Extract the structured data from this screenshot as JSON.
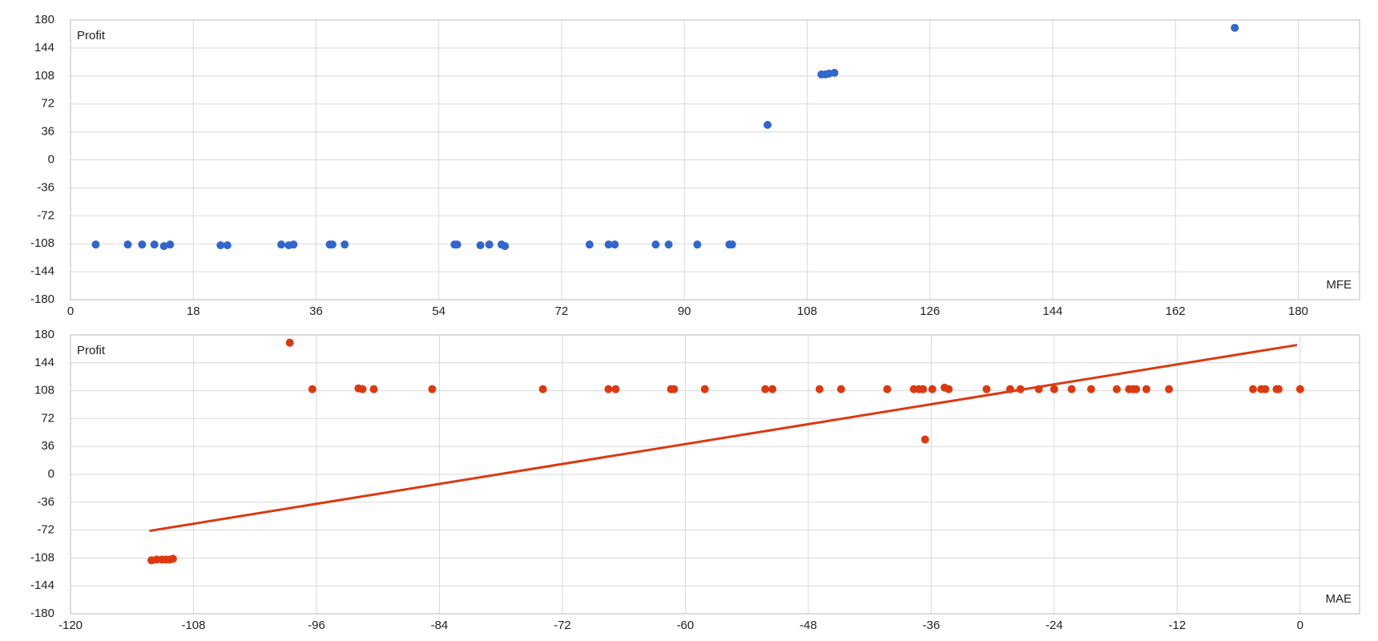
{
  "chart_data": [
    {
      "type": "scatter",
      "ylabel": "Profit",
      "xlabel": "MFE",
      "color": "#3366cc",
      "grid": true,
      "x": [
        3.7,
        8.4,
        10.5,
        12.3,
        13.7,
        14.6,
        22.0,
        23.0,
        30.9,
        32.0,
        32.7,
        38.0,
        38.4,
        40.2,
        56.3,
        56.7,
        60.1,
        61.4,
        63.2,
        63.7,
        76.1,
        78.9,
        79.8,
        85.8,
        87.7,
        91.9,
        96.6,
        97.0,
        102.2,
        110.1,
        110.7,
        111.2,
        112.0,
        170.7
      ],
      "values": [
        -109,
        -109,
        -109,
        -109,
        -111,
        -109,
        -110,
        -110,
        -109,
        -110,
        -109,
        -109,
        -109,
        -109,
        -109,
        -109,
        -110,
        -109,
        -109,
        -111,
        -109,
        -109,
        -109,
        -109,
        -109,
        -109,
        -109,
        -109,
        45,
        110,
        110,
        111,
        112,
        170
      ],
      "xlim": [
        0,
        189
      ],
      "xticks": [
        0,
        18,
        36,
        54,
        72,
        90,
        108,
        126,
        144,
        162,
        180
      ],
      "ylim": [
        -180,
        180
      ],
      "yticks": [
        -180,
        -144,
        -108,
        -72,
        -36,
        0,
        36,
        72,
        108,
        144,
        180
      ]
    },
    {
      "type": "scatter",
      "ylabel": "Profit",
      "xlabel": "MAE",
      "color": "#dc3912",
      "grid": true,
      "x": [
        -112.1,
        -111.6,
        -111.1,
        -110.7,
        -110.3,
        -110.0,
        -98.6,
        -96.4,
        -91.9,
        -91.5,
        -90.4,
        -84.7,
        -73.9,
        -67.5,
        -66.8,
        -61.4,
        -61.1,
        -58.1,
        -52.2,
        -51.5,
        -46.9,
        -44.8,
        -40.3,
        -37.7,
        -37.2,
        -36.8,
        -36.6,
        -35.9,
        -34.7,
        -34.3,
        -30.6,
        -28.3,
        -27.3,
        -25.5,
        -24.0,
        -22.3,
        -20.4,
        -17.9,
        -16.7,
        -16.3,
        -16.0,
        -15.0,
        -12.8,
        -4.6,
        -3.8,
        -3.4,
        -2.3,
        -2.1,
        0
      ],
      "values": [
        -111,
        -110,
        -110,
        -110,
        -110,
        -109,
        170,
        110,
        111,
        110,
        110,
        110,
        110,
        110,
        110,
        110,
        110,
        110,
        110,
        110,
        110,
        110,
        110,
        110,
        110,
        110,
        45,
        110,
        112,
        110,
        110,
        110,
        110,
        110,
        110,
        110,
        110,
        110,
        110,
        110,
        110,
        110,
        110,
        110,
        110,
        110,
        110,
        110,
        110
      ],
      "trendline": {
        "x": [
          -112.3,
          -0.3
        ],
        "y": [
          -73,
          167
        ]
      },
      "xlim": [
        -120,
        5.8
      ],
      "xticks": [
        -120,
        -108,
        -96,
        -84,
        -72,
        -60,
        -48,
        -36,
        -24,
        -12,
        0
      ],
      "ylim": [
        -180,
        180
      ],
      "yticks": [
        -180,
        -144,
        -108,
        -72,
        -36,
        0,
        36,
        72,
        108,
        144,
        180
      ]
    }
  ]
}
